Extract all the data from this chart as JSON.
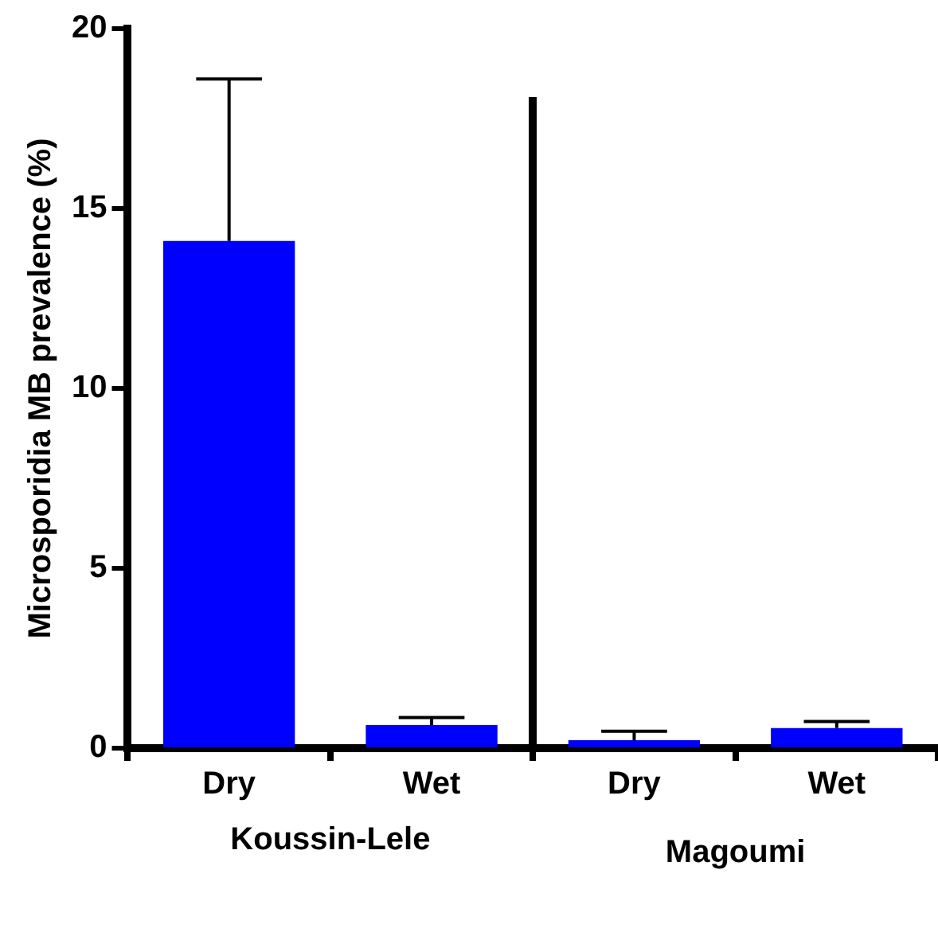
{
  "chart_data": {
    "type": "bar",
    "ylabel": "Microsporidia MB prevalence (%)",
    "categories": [
      "Dry",
      "Wet",
      "Dry",
      "Wet"
    ],
    "values": [
      14.1,
      0.64,
      0.22,
      0.56
    ],
    "errors": [
      [
        14.1,
        18.6
      ],
      [
        0.64,
        0.85
      ],
      [
        0.22,
        0.47
      ],
      [
        0.56,
        0.74
      ]
    ],
    "color": "#0000ff",
    "ylim": [
      0,
      20
    ],
    "yticks": [
      0,
      5,
      10,
      15,
      20
    ],
    "annotations": [
      "Koussin-Lele",
      "Magoumi"
    ]
  }
}
